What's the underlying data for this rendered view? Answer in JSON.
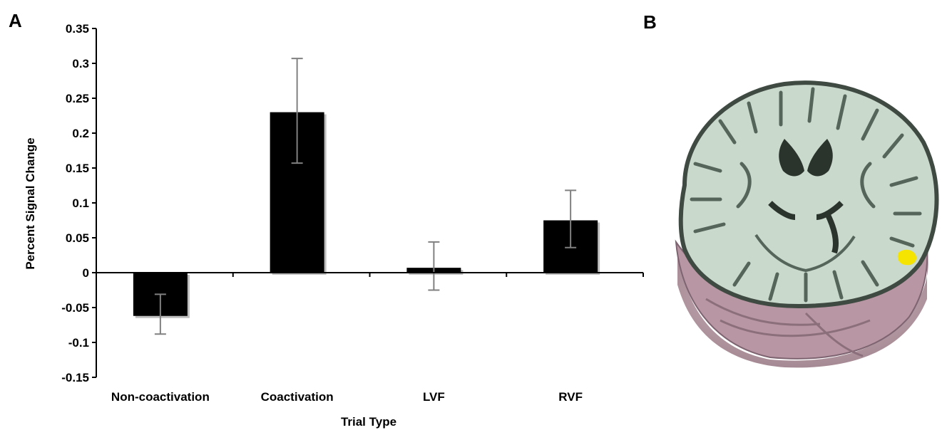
{
  "panels": {
    "a_label": "A",
    "b_label": "B"
  },
  "chart_data": {
    "type": "bar",
    "title": "",
    "xlabel": "Trial Type",
    "ylabel": "Percent Signal Change",
    "categories": [
      "Non-coactivation",
      "Coactivation",
      "LVF",
      "RVF"
    ],
    "values": [
      -0.062,
      0.23,
      0.007,
      0.075
    ],
    "error_low": [
      -0.088,
      0.157,
      -0.025,
      0.036
    ],
    "error_high": [
      -0.031,
      0.307,
      0.044,
      0.118
    ],
    "ylim": [
      -0.15,
      0.35
    ],
    "yticks": [
      0.35,
      0.3,
      0.25,
      0.2,
      0.15,
      0.1,
      0.05,
      0,
      -0.05,
      -0.1,
      -0.15
    ],
    "ytick_labels": [
      "0.35",
      "0.3",
      "0.25",
      "0.2",
      "0.15",
      "0.1",
      "0.05",
      "0",
      "-0.05",
      "-0.1",
      "-0.15"
    ],
    "grid": false,
    "bar_color": "#000000",
    "error_bar_color": "#808080"
  },
  "brain_image": {
    "slice_color": "#c9d9cc",
    "sulci_color": "#4a5a4e",
    "cortex_base_color": "#b89aa4",
    "activation_color": "#f5e400"
  }
}
